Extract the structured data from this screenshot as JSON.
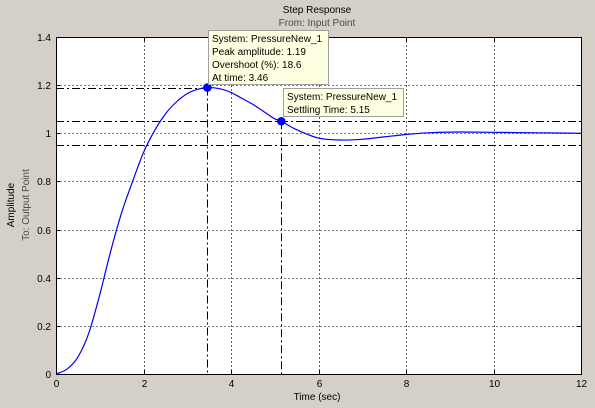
{
  "chart_data": {
    "type": "line",
    "title": "Step Response",
    "subtitle": "From: Input Point",
    "xlabel": "Time (sec)",
    "ylabel": "Amplitude",
    "ylabel_sub": "To: Output Point",
    "xlim": [
      0,
      12
    ],
    "ylim": [
      0,
      1.4
    ],
    "xticks": [
      0,
      2,
      4,
      6,
      8,
      10,
      12
    ],
    "yticks": [
      0,
      0.2,
      0.4,
      0.6,
      0.8,
      1,
      1.2,
      1.4
    ],
    "xtick_labels": [
      "0",
      "2",
      "4",
      "6",
      "8",
      "10",
      "12"
    ],
    "ytick_labels": [
      "0",
      "0.2",
      "0.4",
      "0.6",
      "0.8",
      "1",
      "1.2",
      "1.4"
    ],
    "grid": true,
    "series": [
      {
        "color": "#0000ff",
        "x": [
          0,
          0.25,
          0.5,
          0.75,
          1.0,
          1.25,
          1.5,
          1.75,
          2.0,
          2.25,
          2.5,
          2.75,
          3.0,
          3.25,
          3.46,
          3.75,
          4.0,
          4.25,
          4.5,
          4.75,
          5.0,
          5.15,
          5.5,
          6.0,
          6.5,
          7.0,
          7.5,
          8.0,
          8.5,
          9.0,
          9.5,
          10.0,
          10.5,
          11.0,
          11.5,
          12.0
        ],
        "y": [
          0,
          0.02,
          0.07,
          0.17,
          0.33,
          0.51,
          0.67,
          0.8,
          0.92,
          1.01,
          1.08,
          1.13,
          1.165,
          1.183,
          1.19,
          1.185,
          1.17,
          1.145,
          1.12,
          1.09,
          1.06,
          1.05,
          1.015,
          0.98,
          0.972,
          0.975,
          0.985,
          0.995,
          1.002,
          1.005,
          1.005,
          1.004,
          1.003,
          1.002,
          1.001,
          1.0
        ]
      }
    ],
    "reference_lines": [
      {
        "axis": "y",
        "value": 1.19,
        "style": "dash-dot",
        "color": "#000000"
      },
      {
        "axis": "x",
        "value": 3.46,
        "style": "dash-dot",
        "color": "#000000"
      },
      {
        "axis": "y",
        "value": 1.05,
        "style": "dash-dot",
        "color": "#000000"
      },
      {
        "axis": "y",
        "value": 0.95,
        "style": "dash-dot",
        "color": "#000000"
      },
      {
        "axis": "x",
        "value": 5.15,
        "style": "dash-dot",
        "color": "#000000"
      }
    ],
    "markers": [
      {
        "x": 3.46,
        "y": 1.19,
        "color": "#0000ff"
      },
      {
        "x": 5.15,
        "y": 1.05,
        "color": "#0000ff"
      }
    ],
    "annotations": [
      {
        "lines": [
          "System: PressureNew_1",
          "Peak amplitude: 1.19",
          "Overshoot (%): 18.6",
          "At time: 3.46"
        ]
      },
      {
        "lines": [
          "System: PressureNew_1",
          "Settling Time: 5.15"
        ]
      }
    ]
  }
}
